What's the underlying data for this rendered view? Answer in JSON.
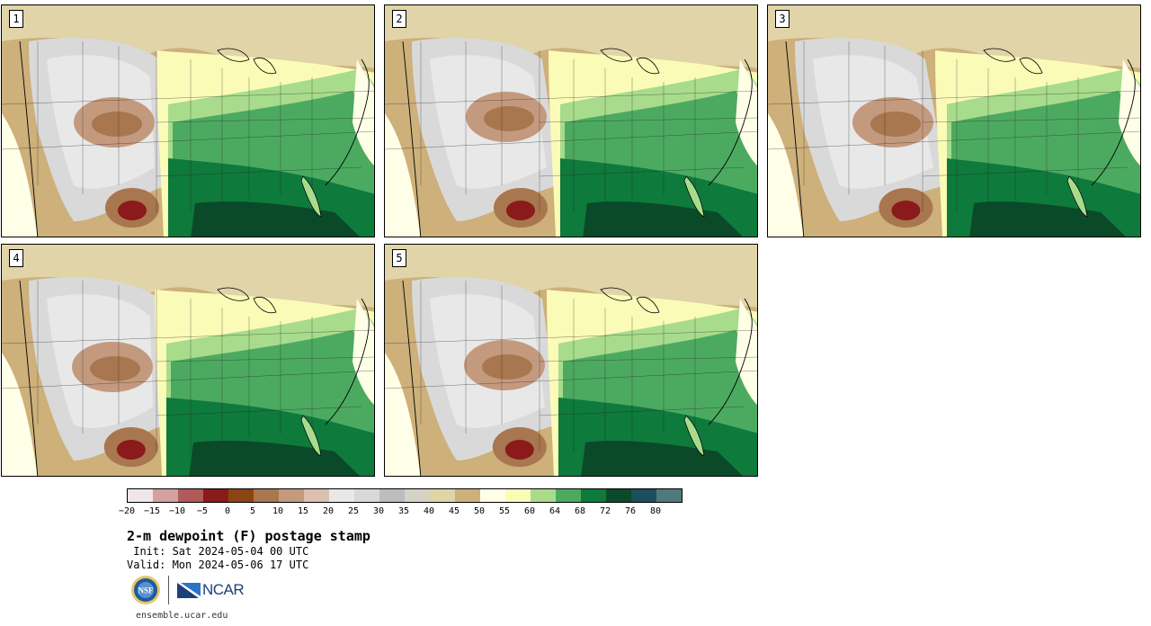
{
  "panels": [
    {
      "label": "1"
    },
    {
      "label": "2"
    },
    {
      "label": "3"
    },
    {
      "label": "4"
    },
    {
      "label": "5"
    }
  ],
  "colorbar": {
    "colors": [
      "#f2e6e6",
      "#d4a1a1",
      "#b05a5a",
      "#8b1a1a",
      "#8b4513",
      "#a8764f",
      "#c49a7e",
      "#dcc0ad",
      "#e8e8e8",
      "#d9d9d9",
      "#bdbdbd",
      "#d6d2c4",
      "#e0d4a8",
      "#cdb07a",
      "#ffffe8",
      "#fbfbb8",
      "#a8dc8c",
      "#4caa60",
      "#0e7a3c",
      "#0a4a28",
      "#1e4e5e",
      "#4e7a7e"
    ],
    "tick_labels": [
      "−20",
      "−15",
      "−10",
      "−5",
      "0",
      "5",
      "10",
      "15",
      "20",
      "25",
      "30",
      "35",
      "40",
      "45",
      "50",
      "55",
      "60",
      "64",
      "68",
      "72",
      "76",
      "80"
    ]
  },
  "title": "2-m dewpoint (F) postage stamp",
  "init_line": " Init: Sat 2024-05-04 00 UTC",
  "valid_line": "Valid: Mon 2024-05-06 17 UTC",
  "logos": {
    "nsf": "NSF",
    "ncar": "NCAR"
  },
  "footer": "ensemble.ucar.edu"
}
